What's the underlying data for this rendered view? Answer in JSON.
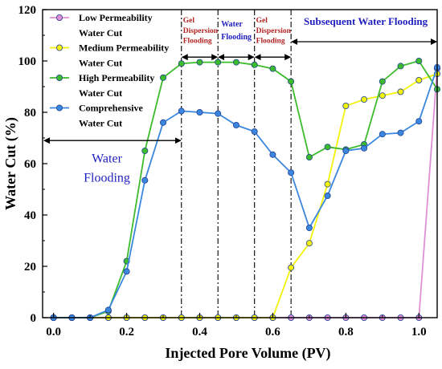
{
  "chart_data": {
    "type": "line",
    "xlabel": "Injected Pore Volume (PV)",
    "ylabel": "Water Cut (%)",
    "xlim": [
      -0.03,
      1.05
    ],
    "ylim": [
      0,
      120
    ],
    "xticks": [
      "0.0",
      "0.2",
      "0.4",
      "0.6",
      "0.8",
      "1.0"
    ],
    "xtick_values": [
      0.0,
      0.2,
      0.4,
      0.6,
      0.8,
      1.0
    ],
    "yticks": [
      "0",
      "20",
      "40",
      "60",
      "80",
      "100",
      "120"
    ],
    "ytick_values": [
      0,
      20,
      40,
      60,
      80,
      100,
      120
    ],
    "grid": false,
    "legend_position": "top-left",
    "series": [
      {
        "name": "Low Permeability Water Cut",
        "color": "#de8fd6",
        "x": [
          0,
          0.05,
          0.1,
          0.15,
          0.2,
          0.25,
          0.3,
          0.35,
          0.4,
          0.45,
          0.5,
          0.55,
          0.6,
          0.65,
          0.7,
          0.75,
          0.8,
          0.85,
          0.9,
          0.95,
          1.0,
          1.05
        ],
        "y": [
          0,
          0,
          0,
          0,
          0,
          0,
          0,
          0,
          0,
          0,
          0,
          0,
          0,
          0,
          0,
          0,
          0,
          0,
          0,
          0,
          0,
          97
        ]
      },
      {
        "name": "Medium Permeability Water Cut",
        "color": "#f2f20a",
        "x": [
          0,
          0.05,
          0.1,
          0.15,
          0.2,
          0.25,
          0.3,
          0.35,
          0.4,
          0.45,
          0.5,
          0.55,
          0.6,
          0.65,
          0.7,
          0.75,
          0.8,
          0.85,
          0.9,
          0.95,
          1.0,
          1.05
        ],
        "y": [
          0,
          0,
          0,
          0,
          0,
          0,
          0,
          0,
          0,
          0,
          0,
          0,
          0,
          19.5,
          29,
          52,
          82.5,
          85,
          86.5,
          88,
          92.5,
          95
        ]
      },
      {
        "name": "High Permeability Water Cut",
        "color": "#3cbc2c",
        "x": [
          0,
          0.05,
          0.1,
          0.15,
          0.2,
          0.25,
          0.3,
          0.35,
          0.4,
          0.45,
          0.5,
          0.55,
          0.6,
          0.65,
          0.7,
          0.75,
          0.8,
          0.85,
          0.9,
          0.95,
          1.0,
          1.05
        ],
        "y": [
          0,
          0,
          0,
          2.5,
          22,
          65,
          93.5,
          99,
          99.5,
          99.5,
          99.5,
          98.5,
          97,
          92,
          62.5,
          66.5,
          65.5,
          67.5,
          92,
          98,
          100,
          89
        ]
      },
      {
        "name": "Comprehensive Water Cut",
        "color": "#3b87e0",
        "x": [
          0,
          0.05,
          0.1,
          0.15,
          0.2,
          0.25,
          0.3,
          0.35,
          0.4,
          0.45,
          0.5,
          0.55,
          0.6,
          0.65,
          0.7,
          0.75,
          0.8,
          0.85,
          0.9,
          0.95,
          1.0,
          1.05
        ],
        "y": [
          0,
          0,
          0,
          3,
          18,
          53.5,
          76,
          80.5,
          80,
          79.5,
          75,
          72.5,
          63.5,
          56.5,
          35,
          47.5,
          65,
          66,
          71.5,
          72,
          76.5,
          97.5
        ]
      }
    ],
    "phase_boundaries": [
      0.35,
      0.45,
      0.55,
      0.65
    ],
    "annotations": {
      "water_flooding_1": "Water Flooding",
      "gel_dispersion_flooding_1": "Gel Dispersion Flooding",
      "water_flooding_2": "Water Flooding",
      "gel_dispersion_flooding_2": "Gel Dispersion Flooding",
      "subsequent_water_flooding": "Subsequent Water Flooding"
    }
  }
}
